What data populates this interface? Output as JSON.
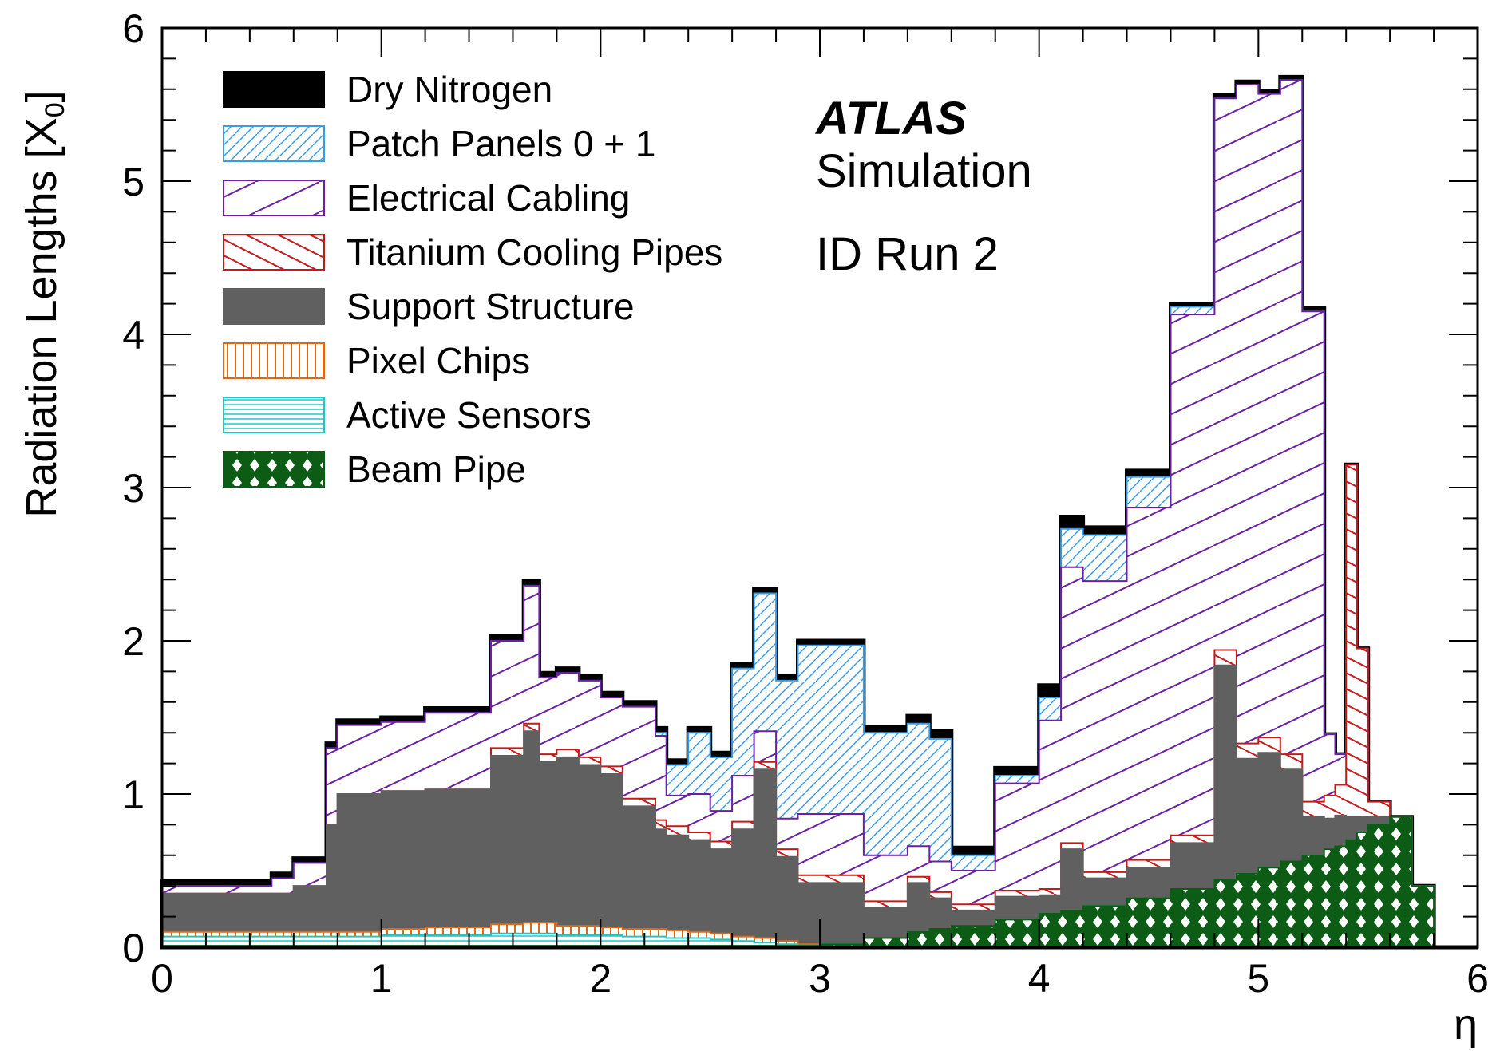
{
  "chart_data": {
    "type": "area",
    "stacked": true,
    "x_label": "η",
    "y_label": "Radiation Lengths [X",
    "y_label_sub": "0",
    "y_label_close": "]",
    "xlim": [
      0,
      6
    ],
    "ylim": [
      0,
      6
    ],
    "x_ticks": [
      "0",
      "1",
      "2",
      "3",
      "4",
      "5",
      "6"
    ],
    "y_ticks": [
      "0",
      "1",
      "2",
      "3",
      "4",
      "5",
      "6"
    ],
    "legend_placement": "top-left",
    "annotations": {
      "experiment": "ATLAS",
      "label": "Simulation",
      "detail": "ID Run 2"
    },
    "x": [
      0.0,
      0.5,
      0.6,
      0.75,
      0.8,
      1.0,
      1.2,
      1.5,
      1.65,
      1.72,
      1.8,
      1.9,
      2.0,
      2.1,
      2.25,
      2.3,
      2.4,
      2.5,
      2.6,
      2.7,
      2.8,
      2.9,
      3.0,
      3.2,
      3.4,
      3.5,
      3.6,
      3.8,
      4.0,
      4.1,
      4.2,
      4.4,
      4.6,
      4.8,
      4.9,
      5.0,
      5.1,
      5.2,
      5.3,
      5.35,
      5.4,
      5.45,
      5.5,
      5.6,
      5.7,
      5.8,
      6.0
    ],
    "series": [
      {
        "name": "Beam Pipe",
        "color": "#0d5c16",
        "pattern": "diamond",
        "values": [
          0.01,
          0.01,
          0.01,
          0.01,
          0.01,
          0.01,
          0.01,
          0.01,
          0.01,
          0.01,
          0.01,
          0.01,
          0.01,
          0.01,
          0.01,
          0.01,
          0.01,
          0.01,
          0.01,
          0.01,
          0.01,
          0.01,
          0.02,
          0.06,
          0.1,
          0.12,
          0.14,
          0.18,
          0.22,
          0.24,
          0.27,
          0.32,
          0.38,
          0.44,
          0.48,
          0.52,
          0.56,
          0.6,
          0.64,
          0.66,
          0.7,
          0.75,
          0.8,
          0.85,
          0.4,
          0.0,
          0.0
        ]
      },
      {
        "name": "Active Sensors",
        "color": "#22c5c5",
        "pattern": "hlines",
        "values": [
          0.06,
          0.06,
          0.06,
          0.06,
          0.06,
          0.07,
          0.07,
          0.08,
          0.08,
          0.08,
          0.07,
          0.07,
          0.07,
          0.06,
          0.06,
          0.05,
          0.05,
          0.04,
          0.03,
          0.02,
          0.01,
          0.0,
          0.0,
          0.0,
          0.0,
          0.0,
          0.0,
          0.0,
          0.0,
          0.0,
          0.0,
          0.0,
          0.0,
          0.0,
          0.0,
          0.0,
          0.0,
          0.0,
          0.0,
          0.0,
          0.0,
          0.0,
          0.0,
          0.0,
          0.0,
          0.0,
          0.0
        ]
      },
      {
        "name": "Pixel Chips",
        "color": "#d96a1a",
        "pattern": "vlines",
        "values": [
          0.03,
          0.03,
          0.03,
          0.03,
          0.03,
          0.04,
          0.05,
          0.06,
          0.07,
          0.07,
          0.06,
          0.06,
          0.05,
          0.05,
          0.05,
          0.05,
          0.04,
          0.04,
          0.03,
          0.03,
          0.02,
          0.01,
          0.0,
          0.0,
          0.0,
          0.0,
          0.0,
          0.0,
          0.0,
          0.0,
          0.0,
          0.0,
          0.0,
          0.0,
          0.0,
          0.0,
          0.0,
          0.0,
          0.0,
          0.0,
          0.0,
          0.0,
          0.0,
          0.0,
          0.0,
          0.0,
          0.0
        ]
      },
      {
        "name": "Support Structure",
        "color": "#606060",
        "pattern": "solid",
        "values": [
          0.25,
          0.25,
          0.3,
          0.7,
          0.9,
          0.9,
          0.9,
          1.1,
          1.25,
          1.05,
          1.1,
          1.05,
          1.0,
          0.8,
          0.65,
          0.62,
          0.6,
          0.55,
          0.7,
          1.1,
          0.55,
          0.4,
          0.4,
          0.2,
          0.32,
          0.2,
          0.1,
          0.15,
          0.12,
          0.4,
          0.18,
          0.2,
          0.3,
          1.4,
          0.75,
          0.75,
          0.6,
          0.25,
          0.2,
          0.2,
          0.15,
          0.1,
          0.05,
          0.0,
          0.0,
          0.0,
          0.0
        ]
      },
      {
        "name": "Titanium Cooling Pipes",
        "color": "#c41a1a",
        "pattern": "diag-red",
        "values": [
          0.0,
          0.0,
          0.0,
          0.0,
          0.0,
          0.0,
          0.0,
          0.05,
          0.05,
          0.05,
          0.05,
          0.05,
          0.05,
          0.05,
          0.06,
          0.06,
          0.05,
          0.05,
          0.05,
          0.05,
          0.05,
          0.05,
          0.05,
          0.04,
          0.04,
          0.04,
          0.04,
          0.04,
          0.04,
          0.04,
          0.04,
          0.05,
          0.05,
          0.1,
          0.1,
          0.1,
          0.1,
          0.1,
          0.15,
          0.2,
          2.3,
          1.1,
          0.1,
          0.0,
          0.0,
          0.0,
          0.0
        ]
      },
      {
        "name": "Electrical Cabling",
        "color": "#6a1fa6",
        "pattern": "diag-purple",
        "values": [
          0.05,
          0.1,
          0.15,
          0.5,
          0.45,
          0.45,
          0.5,
          0.7,
          0.9,
          0.5,
          0.5,
          0.5,
          0.45,
          0.6,
          0.55,
          0.2,
          0.25,
          0.2,
          0.3,
          0.2,
          0.2,
          0.4,
          0.4,
          0.3,
          0.2,
          0.2,
          0.22,
          0.7,
          1.1,
          1.8,
          1.9,
          2.3,
          3.4,
          3.6,
          4.3,
          4.2,
          4.4,
          3.2,
          0.4,
          0.2,
          0.0,
          0.0,
          0.0,
          0.0,
          0.0,
          0.0,
          0.0
        ]
      },
      {
        "name": "Patch Panels 0 + 1",
        "color": "#3a9be5",
        "pattern": "diag-blue",
        "values": [
          0.0,
          0.0,
          0.0,
          0.0,
          0.0,
          0.0,
          0.0,
          0.0,
          0.0,
          0.0,
          0.0,
          0.0,
          0.0,
          0.0,
          0.02,
          0.2,
          0.4,
          0.35,
          0.7,
          0.9,
          0.9,
          1.1,
          1.1,
          0.8,
          0.8,
          0.8,
          0.1,
          0.05,
          0.15,
          0.25,
          0.3,
          0.2,
          0.05,
          0.0,
          0.0,
          0.0,
          0.0,
          0.0,
          0.0,
          0.0,
          0.0,
          0.0,
          0.0,
          0.0,
          0.0,
          0.0,
          0.0
        ]
      },
      {
        "name": "Dry Nitrogen",
        "color": "#000000",
        "pattern": "solid",
        "values": [
          0.03,
          0.03,
          0.03,
          0.03,
          0.03,
          0.03,
          0.03,
          0.03,
          0.03,
          0.03,
          0.03,
          0.03,
          0.03,
          0.03,
          0.03,
          0.03,
          0.03,
          0.03,
          0.03,
          0.03,
          0.03,
          0.03,
          0.03,
          0.04,
          0.05,
          0.05,
          0.05,
          0.05,
          0.08,
          0.08,
          0.05,
          0.04,
          0.02,
          0.02,
          0.02,
          0.02,
          0.02,
          0.02,
          0.0,
          0.0,
          0.0,
          0.0,
          0.0,
          0.0,
          0.0,
          0.0,
          0.0
        ]
      }
    ]
  }
}
